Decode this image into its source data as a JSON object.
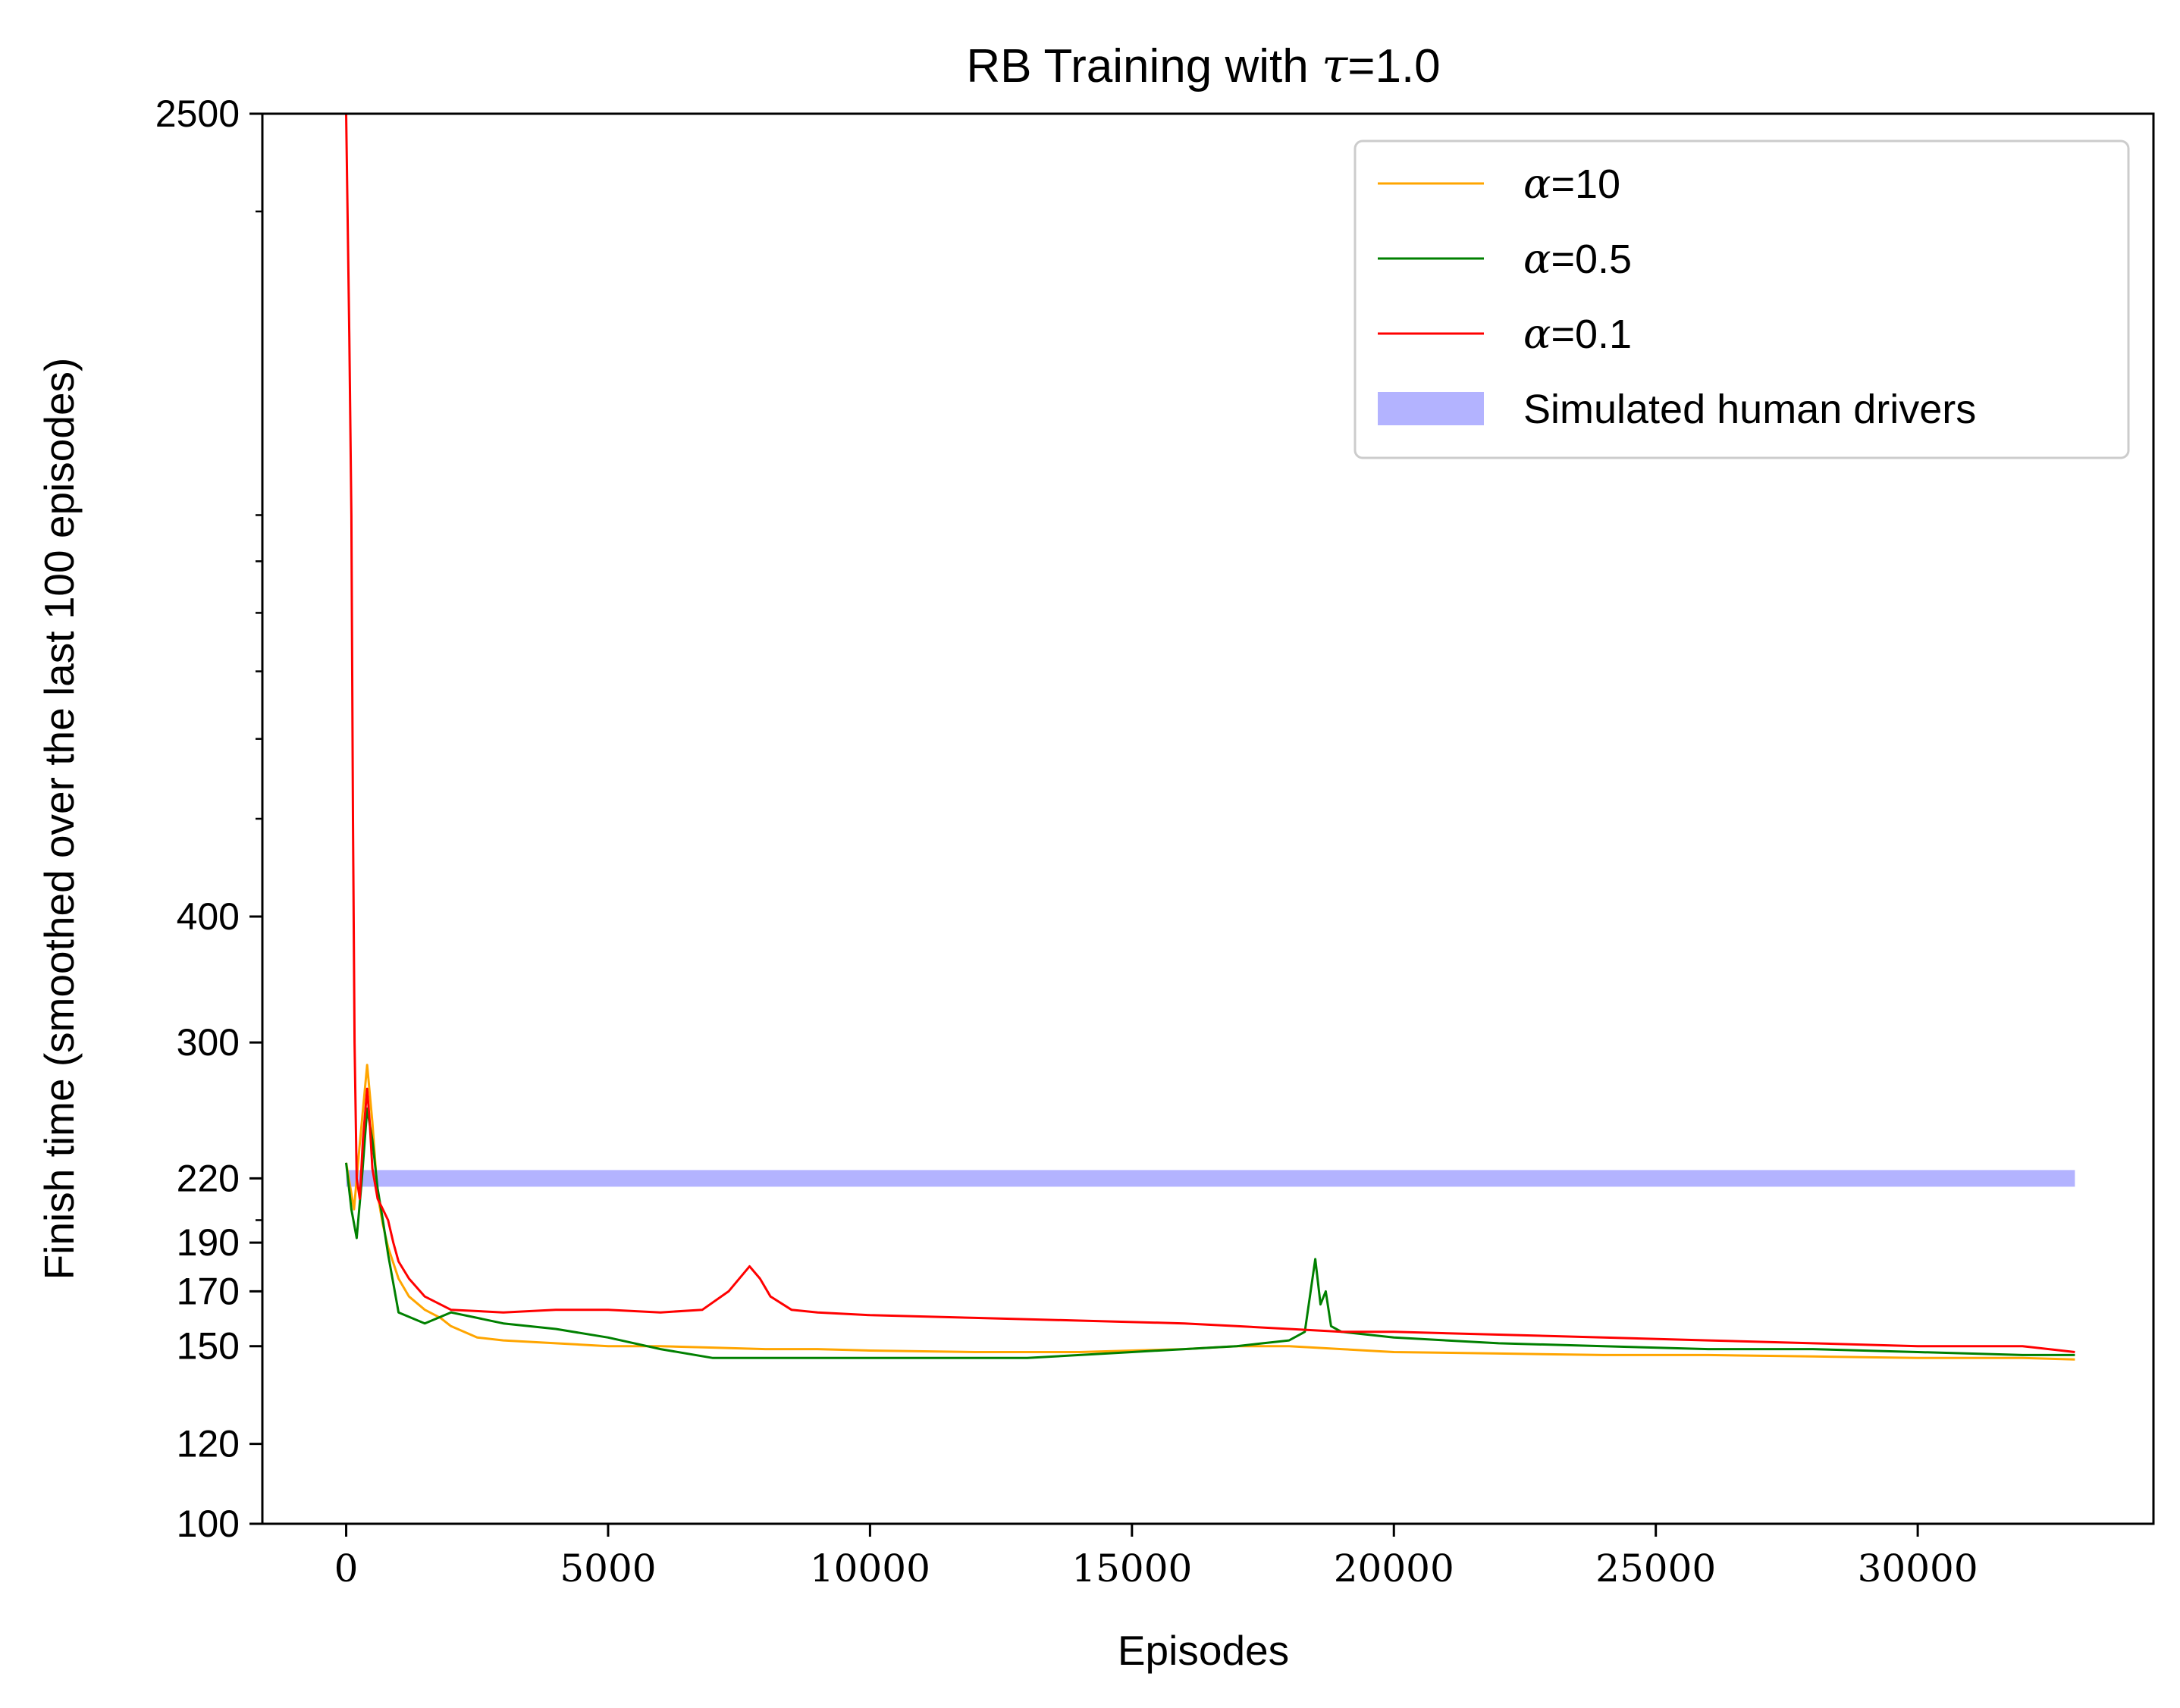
{
  "chart_data": {
    "type": "line",
    "title_prefix": "RB Training with ",
    "title_symbol": "τ",
    "title_suffix": "=1.0",
    "xlabel": "Episodes",
    "ylabel": "Finish time (smoothed over the last 100 episodes)",
    "xlim": [
      -1600,
      34500
    ],
    "ylim": [
      100,
      2500
    ],
    "y_scale": "log",
    "x_ticks": [
      0,
      5000,
      10000,
      15000,
      20000,
      25000,
      30000
    ],
    "y_ticks": [
      100,
      120,
      150,
      170,
      190,
      220,
      300,
      400,
      2500
    ],
    "y_minor_ticks": [
      200,
      500,
      600,
      700,
      800,
      900,
      1000,
      2000
    ],
    "legend_position": "top-right",
    "series": [
      {
        "name": "=10",
        "symbol": "α",
        "color": "#ffa500",
        "points": [
          [
            0,
            228
          ],
          [
            150,
            205
          ],
          [
            250,
            235
          ],
          [
            400,
            285
          ],
          [
            500,
            250
          ],
          [
            600,
            212
          ],
          [
            700,
            198
          ],
          [
            800,
            188
          ],
          [
            1000,
            175
          ],
          [
            1200,
            168
          ],
          [
            1500,
            163
          ],
          [
            1800,
            160
          ],
          [
            2000,
            157
          ],
          [
            2500,
            153
          ],
          [
            3000,
            152
          ],
          [
            4000,
            151
          ],
          [
            5000,
            150
          ],
          [
            6000,
            150
          ],
          [
            7000,
            149.5
          ],
          [
            8000,
            149
          ],
          [
            9000,
            149
          ],
          [
            10000,
            148.5
          ],
          [
            12000,
            148
          ],
          [
            14000,
            148
          ],
          [
            15000,
            148.5
          ],
          [
            16000,
            149
          ],
          [
            17000,
            150
          ],
          [
            18000,
            150
          ],
          [
            19000,
            149
          ],
          [
            20000,
            148
          ],
          [
            22000,
            147.5
          ],
          [
            24000,
            147
          ],
          [
            26000,
            147
          ],
          [
            28000,
            146.5
          ],
          [
            30000,
            146
          ],
          [
            32000,
            146
          ],
          [
            33000,
            145.5
          ]
        ]
      },
      {
        "name": "=0.5",
        "symbol": "α",
        "color": "#008000",
        "points": [
          [
            0,
            228
          ],
          [
            100,
            205
          ],
          [
            200,
            192
          ],
          [
            300,
            220
          ],
          [
            400,
            258
          ],
          [
            500,
            240
          ],
          [
            600,
            215
          ],
          [
            700,
            200
          ],
          [
            800,
            185
          ],
          [
            1000,
            162
          ],
          [
            1500,
            158
          ],
          [
            2000,
            162
          ],
          [
            2500,
            160
          ],
          [
            3000,
            158
          ],
          [
            4000,
            156
          ],
          [
            5000,
            153
          ],
          [
            6000,
            149
          ],
          [
            7000,
            146
          ],
          [
            8000,
            146
          ],
          [
            9000,
            146
          ],
          [
            10000,
            146
          ],
          [
            11000,
            146
          ],
          [
            12000,
            146
          ],
          [
            13000,
            146
          ],
          [
            14000,
            147
          ],
          [
            15000,
            148
          ],
          [
            16000,
            149
          ],
          [
            17000,
            150
          ],
          [
            17500,
            151
          ],
          [
            18000,
            152
          ],
          [
            18300,
            155
          ],
          [
            18500,
            183
          ],
          [
            18600,
            165
          ],
          [
            18700,
            170
          ],
          [
            18800,
            157
          ],
          [
            19000,
            155
          ],
          [
            20000,
            153
          ],
          [
            21000,
            152
          ],
          [
            22000,
            151
          ],
          [
            24000,
            150
          ],
          [
            26000,
            149
          ],
          [
            28000,
            149
          ],
          [
            30000,
            148
          ],
          [
            32000,
            147
          ],
          [
            33000,
            147
          ]
        ]
      },
      {
        "name": "=0.1",
        "symbol": "α",
        "color": "#ff0000",
        "points": [
          [
            0,
            2500
          ],
          [
            60,
            1500
          ],
          [
            100,
            1000
          ],
          [
            130,
            500
          ],
          [
            160,
            300
          ],
          [
            200,
            220
          ],
          [
            260,
            210
          ],
          [
            320,
            240
          ],
          [
            400,
            270
          ],
          [
            450,
            250
          ],
          [
            500,
            225
          ],
          [
            600,
            210
          ],
          [
            700,
            205
          ],
          [
            800,
            200
          ],
          [
            900,
            190
          ],
          [
            1000,
            182
          ],
          [
            1200,
            175
          ],
          [
            1500,
            168
          ],
          [
            2000,
            163
          ],
          [
            3000,
            162
          ],
          [
            4000,
            163
          ],
          [
            5000,
            163
          ],
          [
            6000,
            162
          ],
          [
            6800,
            163
          ],
          [
            7300,
            170
          ],
          [
            7700,
            180
          ],
          [
            7900,
            175
          ],
          [
            8100,
            168
          ],
          [
            8500,
            163
          ],
          [
            9000,
            162
          ],
          [
            10000,
            161
          ],
          [
            12000,
            160
          ],
          [
            14000,
            159
          ],
          [
            16000,
            158
          ],
          [
            17000,
            157
          ],
          [
            18000,
            156
          ],
          [
            19000,
            155
          ],
          [
            20000,
            155
          ],
          [
            22000,
            154
          ],
          [
            24000,
            153
          ],
          [
            26000,
            152
          ],
          [
            28000,
            151
          ],
          [
            30000,
            150
          ],
          [
            32000,
            150
          ],
          [
            33000,
            148
          ]
        ]
      },
      {
        "name": "Simulated human drivers",
        "color": "#b3b3ff",
        "style": "band",
        "points": [
          [
            0,
            220
          ],
          [
            33000,
            220
          ]
        ]
      }
    ]
  }
}
